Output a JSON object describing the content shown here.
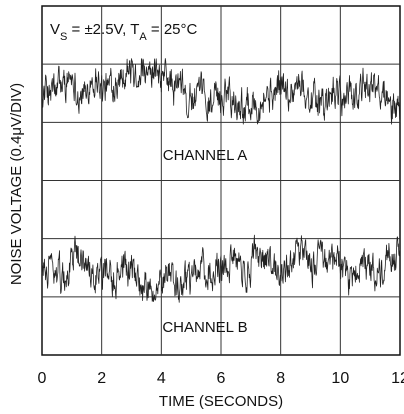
{
  "chart_data": {
    "type": "line",
    "title": "",
    "conditions": {
      "vs": "V",
      "vs_sub": "S",
      "vs_rest": " = ±2.5V, T",
      "ta_sub": "A",
      "ta_rest": " = 25°C"
    },
    "xlabel": "TIME (SECONDS)",
    "ylabel": "NOISE VOLTAGE (0.4μV/DIV)",
    "xlim": [
      0,
      12
    ],
    "x_ticks": [
      "0",
      "2",
      "4",
      "6",
      "8",
      "10",
      "12"
    ],
    "y_divisions": 6,
    "grid": true,
    "series": [
      {
        "name": "CHANNEL A",
        "center_div": 4.5,
        "amplitude_div": 0.6,
        "color": "#222222"
      },
      {
        "name": "CHANNEL B",
        "center_div": 1.5,
        "amplitude_div": 0.6,
        "color": "#222222"
      }
    ]
  }
}
